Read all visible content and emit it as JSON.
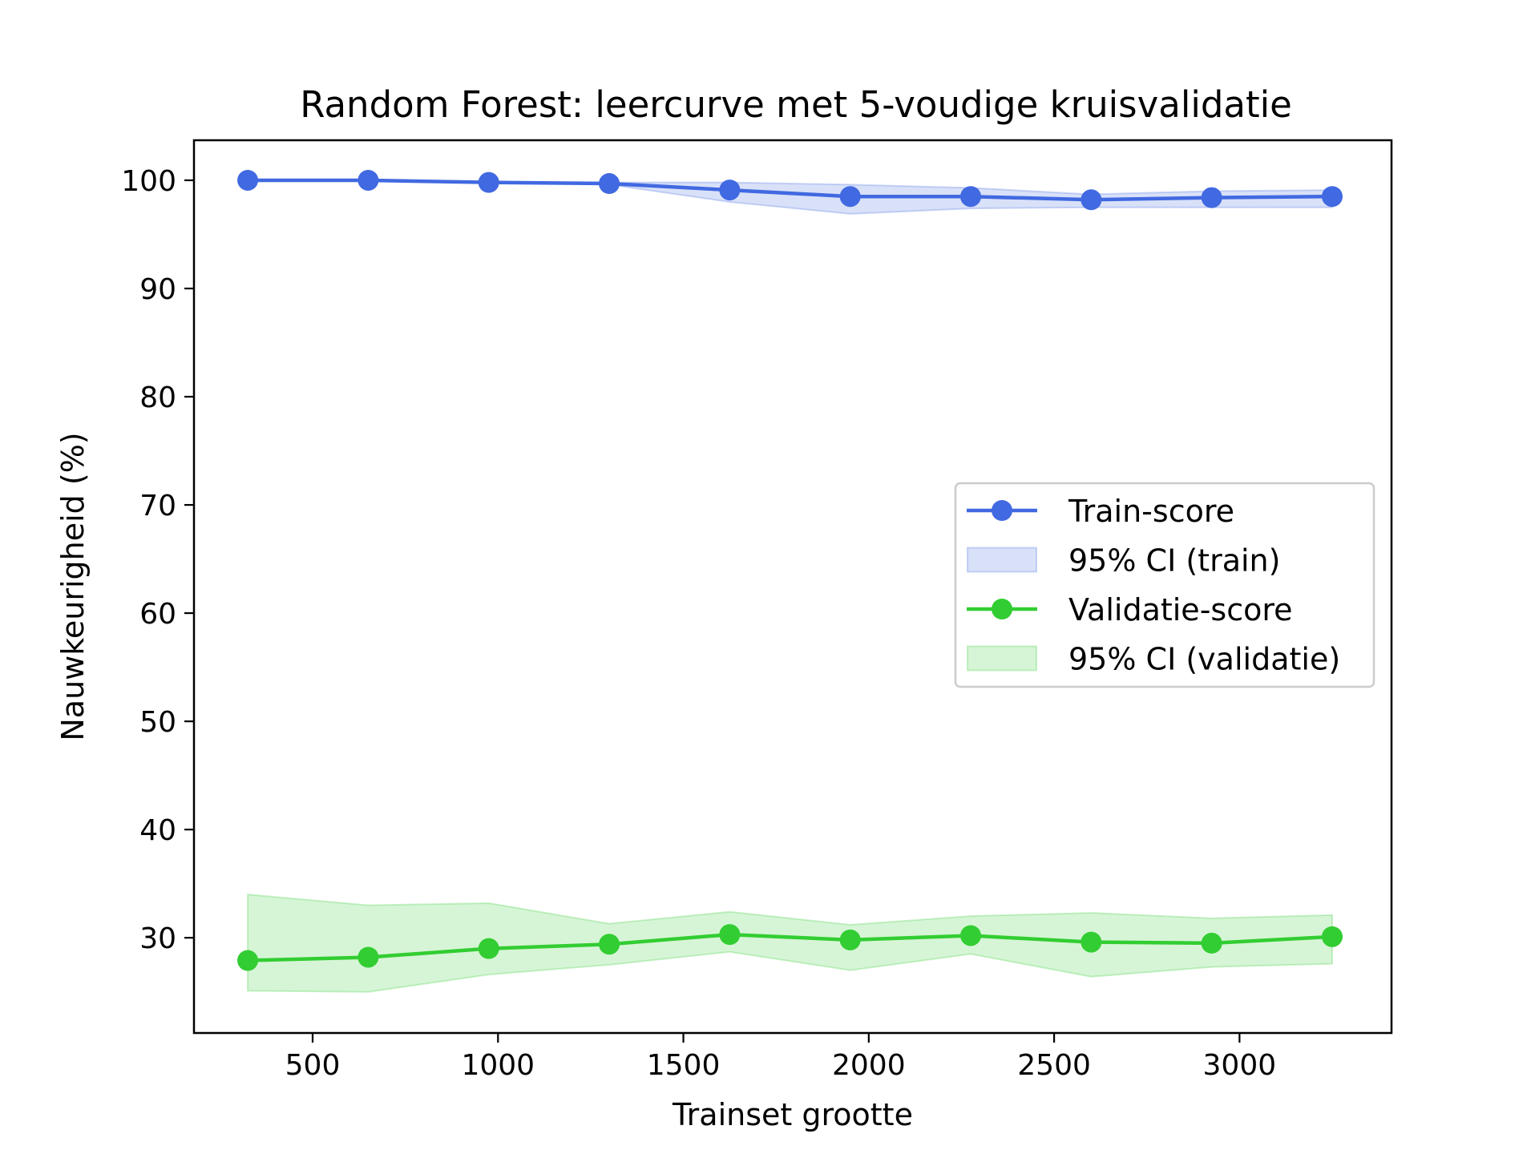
{
  "chart_data": {
    "type": "line",
    "title": "Random Forest: leercurve met 5-voudige kruisvalidatie",
    "xlabel": "Trainset grootte",
    "ylabel": "Nauwkeurigheid (%)",
    "xlim": [
      180,
      3410
    ],
    "ylim": [
      21.2,
      103.7
    ],
    "xticks": [
      500,
      1000,
      1500,
      2000,
      2500,
      3000
    ],
    "yticks": [
      30,
      40,
      50,
      60,
      70,
      80,
      90,
      100
    ],
    "grid": false,
    "legend_position": "center-right",
    "x": [
      325,
      650,
      975,
      1300,
      1625,
      1950,
      2275,
      2600,
      2925,
      3250
    ],
    "series": [
      {
        "name": "Train-score",
        "color": "#4169e1",
        "values": [
          100.0,
          100.0,
          99.8,
          99.7,
          99.1,
          98.5,
          98.5,
          98.2,
          98.4,
          98.5
        ],
        "ci_label": "95% CI (train)",
        "ci_lower": [
          100.0,
          100.0,
          99.8,
          99.6,
          98.0,
          96.9,
          97.4,
          97.5,
          97.5,
          97.5
        ],
        "ci_upper": [
          100.0,
          100.0,
          99.8,
          99.8,
          99.8,
          99.6,
          99.3,
          98.7,
          99.0,
          99.1
        ]
      },
      {
        "name": "Validatie-score",
        "color": "#32cd32",
        "values": [
          27.9,
          28.2,
          29.0,
          29.4,
          30.3,
          29.8,
          30.2,
          29.6,
          29.5,
          30.1
        ],
        "ci_label": "95% CI (validatie)",
        "ci_lower": [
          25.1,
          25.0,
          26.6,
          27.5,
          28.7,
          27.0,
          28.5,
          26.4,
          27.3,
          27.6
        ],
        "ci_upper": [
          34.0,
          33.0,
          33.2,
          31.3,
          32.4,
          31.2,
          32.0,
          32.3,
          31.8,
          32.1
        ]
      }
    ]
  }
}
